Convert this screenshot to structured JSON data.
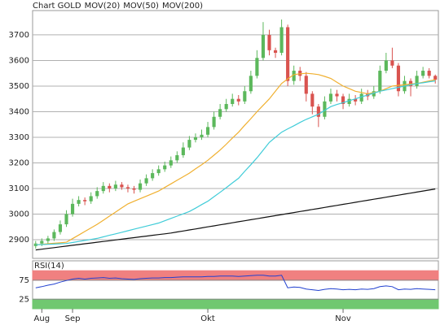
{
  "chart_data": {
    "type": "candlestick",
    "name": "Chart GOLD",
    "up_color": "#5cb85c",
    "down_color": "#d9534f",
    "name_color": "#e05050",
    "categories": [
      null,
      "Aug",
      null,
      null,
      null,
      null,
      "Sep",
      null,
      null,
      null,
      null,
      null,
      null,
      null,
      null,
      null,
      null,
      null,
      null,
      null,
      null,
      null,
      null,
      null,
      null,
      null,
      null,
      null,
      "Okt",
      null,
      null,
      null,
      null,
      null,
      null,
      null,
      null,
      null,
      null,
      null,
      null,
      null,
      null,
      null,
      null,
      null,
      null,
      null,
      null,
      null,
      "Nov",
      null,
      null,
      null,
      null,
      null,
      null,
      null,
      null,
      null,
      null,
      null,
      null,
      null,
      null,
      null
    ],
    "open": [
      2875,
      2885,
      2895,
      2905,
      2930,
      2960,
      3000,
      3040,
      3055,
      3050,
      3070,
      3090,
      3110,
      3100,
      3115,
      3105,
      3100,
      3095,
      3120,
      3140,
      3160,
      3175,
      3190,
      3210,
      3230,
      3260,
      3290,
      3300,
      3310,
      3340,
      3380,
      3410,
      3430,
      3450,
      3440,
      3480,
      3540,
      3610,
      3700,
      3640,
      3630,
      3730,
      3520,
      3560,
      3540,
      3470,
      3420,
      3380,
      3440,
      3470,
      3460,
      3430,
      3450,
      3440,
      3470,
      3460,
      3480,
      3560,
      3600,
      3580,
      3480,
      3520,
      3500,
      3540,
      3560,
      3540
    ],
    "high": [
      2895,
      2905,
      2915,
      2940,
      2975,
      3015,
      3060,
      3070,
      3065,
      3085,
      3105,
      3125,
      3120,
      3130,
      3125,
      3115,
      3110,
      3135,
      3155,
      3175,
      3190,
      3205,
      3225,
      3245,
      3280,
      3305,
      3315,
      3330,
      3360,
      3400,
      3430,
      3450,
      3470,
      3465,
      3500,
      3560,
      3640,
      3750,
      3720,
      3650,
      3760,
      3740,
      3580,
      3575,
      3555,
      3480,
      3430,
      3460,
      3490,
      3485,
      3470,
      3470,
      3465,
      3490,
      3485,
      3500,
      3580,
      3630,
      3650,
      3590,
      3540,
      3530,
      3560,
      3575,
      3570,
      3545
    ],
    "low": [
      2865,
      2875,
      2885,
      2895,
      2920,
      2950,
      2990,
      3030,
      3035,
      3040,
      3060,
      3080,
      3085,
      3090,
      3095,
      3085,
      3080,
      3085,
      3110,
      3130,
      3150,
      3165,
      3180,
      3200,
      3220,
      3250,
      3280,
      3290,
      3300,
      3330,
      3370,
      3400,
      3420,
      3425,
      3430,
      3470,
      3530,
      3600,
      3620,
      3610,
      3620,
      3500,
      3505,
      3520,
      3440,
      3390,
      3340,
      3370,
      3430,
      3440,
      3410,
      3420,
      3425,
      3430,
      3445,
      3450,
      3470,
      3550,
      3570,
      3460,
      3470,
      3460,
      3490,
      3530,
      3530,
      3510
    ],
    "close": [
      2885,
      2895,
      2905,
      2930,
      2960,
      3000,
      3040,
      3055,
      3050,
      3070,
      3090,
      3110,
      3100,
      3115,
      3105,
      3100,
      3095,
      3120,
      3140,
      3160,
      3175,
      3190,
      3210,
      3230,
      3260,
      3290,
      3300,
      3310,
      3340,
      3380,
      3410,
      3430,
      3450,
      3440,
      3480,
      3540,
      3610,
      3700,
      3640,
      3630,
      3730,
      3520,
      3560,
      3540,
      3470,
      3420,
      3380,
      3440,
      3470,
      3460,
      3430,
      3450,
      3440,
      3470,
      3460,
      3480,
      3560,
      3600,
      3580,
      3480,
      3520,
      3500,
      3540,
      3560,
      3540,
      3525
    ],
    "series": [
      {
        "name": "MOV(20)",
        "color": "#f0b030",
        "values": [
          2880,
          2882,
          2884,
          2886,
          2888,
          2890,
          2904,
          2918,
          2932,
          2946,
          2960,
          2976,
          2992,
          3008,
          3024,
          3040,
          3050,
          3060,
          3070,
          3080,
          3090,
          3104,
          3118,
          3132,
          3146,
          3160,
          3177,
          3193,
          3210,
          3230,
          3250,
          3273,
          3297,
          3320,
          3347,
          3373,
          3400,
          3425,
          3450,
          3480,
          3510,
          3528,
          3545,
          3548,
          3550,
          3548,
          3545,
          3538,
          3530,
          3515,
          3500,
          3490,
          3480,
          3475,
          3470,
          3475,
          3480,
          3490,
          3500,
          3503,
          3505,
          3508,
          3510,
          3515,
          3520,
          3525
        ]
      },
      {
        "name": "MOV(50)",
        "color": "#40ccd8",
        "values": [
          2880,
          2881,
          2882,
          2883,
          2884,
          2885,
          2889,
          2893,
          2897,
          2901,
          2905,
          2911,
          2917,
          2923,
          2929,
          2935,
          2941,
          2947,
          2953,
          2959,
          2965,
          2974,
          2983,
          2992,
          3001,
          3010,
          3023,
          3037,
          3050,
          3068,
          3085,
          3103,
          3122,
          3140,
          3167,
          3193,
          3220,
          3250,
          3280,
          3300,
          3320,
          3333,
          3345,
          3358,
          3370,
          3380,
          3390,
          3405,
          3420,
          3428,
          3435,
          3443,
          3450,
          3458,
          3465,
          3473,
          3480,
          3485,
          3490,
          3495,
          3500,
          3505,
          3510,
          3513,
          3517,
          3520
        ]
      },
      {
        "name": "MOV(200)",
        "color": "#111111",
        "values": [
          2860,
          2863,
          2866,
          2869,
          2872,
          2875,
          2878,
          2881,
          2884,
          2887,
          2890,
          2893,
          2896,
          2899,
          2902,
          2905,
          2908,
          2911,
          2914,
          2917,
          2920,
          2923,
          2926,
          2930,
          2934,
          2938,
          2942,
          2946,
          2950,
          2954,
          2958,
          2962,
          2966,
          2970,
          2974,
          2978,
          2982,
          2986,
          2990,
          2994,
          2998,
          3002,
          3006,
          3010,
          3014,
          3018,
          3022,
          3026,
          3030,
          3034,
          3038,
          3042,
          3046,
          3050,
          3054,
          3058,
          3062,
          3066,
          3070,
          3074,
          3078,
          3082,
          3086,
          3090,
          3094,
          3098
        ]
      }
    ],
    "ylim": [
      2827,
      3795
    ],
    "yticks": [
      2900,
      3000,
      3100,
      3200,
      3300,
      3400,
      3500,
      3600,
      3700
    ],
    "grid": true,
    "rsi": {
      "name": "RSI(14)",
      "color": "#2040d0",
      "values": [
        55,
        58,
        62,
        65,
        70,
        74,
        78,
        80,
        78,
        80,
        81,
        82,
        80,
        81,
        79,
        78,
        77,
        79,
        80,
        81,
        81,
        82,
        82,
        83,
        84,
        84,
        84,
        84,
        85,
        85,
        86,
        86,
        86,
        85,
        86,
        87,
        88,
        88,
        86,
        86,
        88,
        55,
        57,
        56,
        52,
        50,
        48,
        51,
        53,
        52,
        50,
        51,
        50,
        52,
        51,
        53,
        58,
        60,
        58,
        50,
        52,
        51,
        53,
        52,
        51,
        50
      ],
      "ylim": [
        0,
        126
      ],
      "yticks": [
        25,
        75
      ],
      "bands": [
        {
          "from": 75,
          "to": 100,
          "color": "#f08080"
        },
        {
          "from": 0,
          "to": 25,
          "color": "#70c870"
        }
      ]
    }
  }
}
